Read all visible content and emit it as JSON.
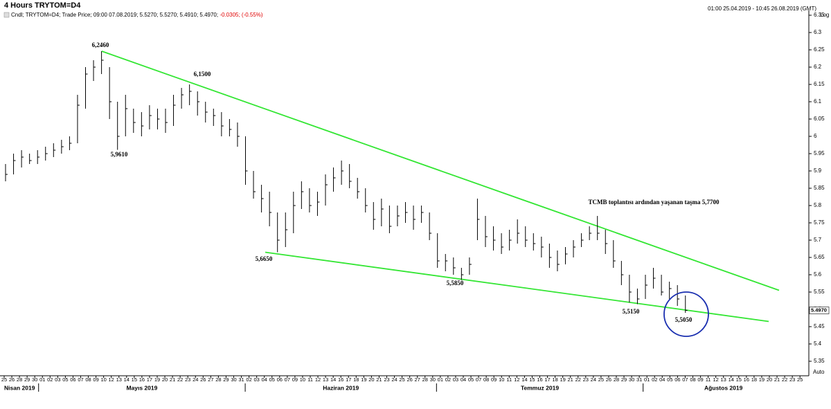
{
  "header": {
    "title": "4 Hours TRYTOM=D4",
    "info": "Cndl; TRYTOM=D4; Trade Price; 09:00 07.08.2019; 5.5270; 5.5270; 5.4910; 5.4970;",
    "change": "-0.0305; (-0.55%)",
    "change_color": "#e00000",
    "range": "01:00 25.04.2019 - 10:45 26.08.2019 (GMT)",
    "scale": "Log",
    "autoscale": "Auto"
  },
  "chart_data": {
    "type": "ohlc",
    "color": "#000000",
    "high": [
      5.92,
      5.95,
      5.96,
      5.95,
      5.96,
      5.97,
      5.98,
      5.99,
      6.0,
      6.12,
      6.2,
      6.22,
      6.246,
      6.2,
      6.1,
      6.12,
      6.08,
      6.07,
      6.09,
      6.08,
      6.08,
      6.12,
      6.14,
      6.15,
      6.13,
      6.1,
      6.08,
      6.07,
      6.05,
      6.04,
      6.0,
      5.9,
      5.86,
      5.84,
      5.78,
      5.78,
      5.84,
      5.87,
      5.85,
      5.84,
      5.89,
      5.91,
      5.93,
      5.92,
      5.88,
      5.85,
      5.81,
      5.82,
      5.8,
      5.8,
      5.81,
      5.8,
      5.8,
      5.78,
      5.72,
      5.66,
      5.65,
      5.62,
      5.65,
      5.82,
      5.77,
      5.74,
      5.72,
      5.73,
      5.76,
      5.74,
      5.72,
      5.71,
      5.69,
      5.67,
      5.68,
      5.7,
      5.72,
      5.74,
      5.77,
      5.73,
      5.7,
      5.64,
      5.6,
      5.56,
      5.6,
      5.62,
      5.6,
      5.58,
      5.57,
      5.54
    ],
    "low": [
      5.87,
      5.89,
      5.91,
      5.92,
      5.92,
      5.93,
      5.94,
      5.95,
      5.96,
      5.98,
      6.08,
      6.16,
      6.18,
      6.05,
      5.961,
      6.0,
      6.01,
      6.0,
      6.02,
      6.02,
      6.01,
      6.03,
      6.08,
      6.09,
      6.06,
      6.04,
      6.03,
      6.0,
      6.0,
      5.97,
      5.86,
      5.82,
      5.78,
      5.74,
      5.665,
      5.68,
      5.72,
      5.79,
      5.78,
      5.77,
      5.8,
      5.84,
      5.86,
      5.85,
      5.82,
      5.78,
      5.73,
      5.74,
      5.72,
      5.74,
      5.75,
      5.73,
      5.75,
      5.7,
      5.62,
      5.61,
      5.6,
      5.585,
      5.6,
      5.7,
      5.68,
      5.67,
      5.66,
      5.67,
      5.69,
      5.68,
      5.67,
      5.65,
      5.62,
      5.61,
      5.63,
      5.65,
      5.68,
      5.7,
      5.7,
      5.66,
      5.62,
      5.57,
      5.52,
      5.515,
      5.53,
      5.56,
      5.54,
      5.53,
      5.51,
      5.49
    ],
    "close": [
      5.89,
      5.93,
      5.94,
      5.93,
      5.94,
      5.95,
      5.96,
      5.97,
      5.98,
      6.09,
      6.18,
      6.2,
      6.22,
      6.1,
      6.0,
      6.08,
      6.04,
      6.03,
      6.06,
      6.05,
      6.04,
      6.09,
      6.12,
      6.13,
      6.1,
      6.07,
      6.06,
      6.03,
      6.02,
      6.0,
      5.9,
      5.84,
      5.82,
      5.78,
      5.7,
      5.73,
      5.8,
      5.84,
      5.8,
      5.81,
      5.86,
      5.88,
      5.9,
      5.87,
      5.84,
      5.8,
      5.76,
      5.79,
      5.74,
      5.77,
      5.78,
      5.76,
      5.78,
      5.72,
      5.64,
      5.64,
      5.62,
      5.6,
      5.63,
      5.76,
      5.71,
      5.7,
      5.68,
      5.7,
      5.72,
      5.7,
      5.69,
      5.68,
      5.65,
      5.63,
      5.66,
      5.68,
      5.7,
      5.72,
      5.72,
      5.69,
      5.64,
      5.6,
      5.55,
      5.53,
      5.57,
      5.59,
      5.55,
      5.56,
      5.53,
      5.497
    ],
    "ylim": [
      5.314,
      6.364
    ],
    "yticks": [
      5.35,
      5.4,
      5.45,
      5.5,
      5.55,
      5.6,
      5.65,
      5.7,
      5.75,
      5.8,
      5.85,
      5.9,
      5.95,
      6,
      6.05,
      6.1,
      6.15,
      6.2,
      6.25,
      6.3,
      6.35
    ],
    "last_price": {
      "value": 5.497,
      "label": "5.4970"
    },
    "trendlines": [
      {
        "color": "#33e633",
        "y": [
          6.246,
          5.555
        ]
      },
      {
        "color": "#33e633",
        "y": [
          5.665,
          5.465
        ]
      }
    ],
    "circle_color": "#1a2fb0",
    "annotations": [
      {
        "text": "6,2460",
        "color": "#e00000"
      },
      {
        "text": "6,1500",
        "color": "#e00000"
      },
      {
        "text": "5,9610",
        "color": "#e00000"
      },
      {
        "text": "5,6650",
        "color": "#e00000"
      },
      {
        "text": "5,5850",
        "color": "#e00000"
      },
      {
        "text": "5,5150",
        "color": "#e00000"
      },
      {
        "text": "5,5050",
        "color": "#e00000"
      },
      {
        "text": "TCMB toplantısı ardından yaşanan taşma 5,7700",
        "color": "#e00000"
      }
    ],
    "x_axis": {
      "months": [
        {
          "label": "Nisan 2019",
          "days": [
            "25",
            "26",
            "28",
            "29",
            "30"
          ]
        },
        {
          "label": "Mayıs 2019",
          "days": [
            "01",
            "02",
            "03",
            "05",
            "06",
            "07",
            "08",
            "09",
            "10",
            "12",
            "13",
            "14",
            "15",
            "16",
            "17",
            "19",
            "20",
            "21",
            "22",
            "23",
            "24",
            "26",
            "27",
            "28",
            "29",
            "30",
            "31"
          ]
        },
        {
          "label": "Haziran 2019",
          "days": [
            "02",
            "03",
            "04",
            "05",
            "06",
            "07",
            "09",
            "10",
            "11",
            "12",
            "13",
            "14",
            "16",
            "17",
            "18",
            "19",
            "20",
            "21",
            "23",
            "24",
            "25",
            "26",
            "27",
            "28",
            "30"
          ]
        },
        {
          "label": "Temmuz 2019",
          "days": [
            "01",
            "02",
            "03",
            "04",
            "05",
            "07",
            "08",
            "09",
            "10",
            "11",
            "12",
            "14",
            "15",
            "16",
            "17",
            "18",
            "19",
            "21",
            "22",
            "23",
            "24",
            "25",
            "26",
            "28",
            "29",
            "30",
            "31"
          ]
        },
        {
          "label": "Ağustos 2019",
          "days": [
            "01",
            "02",
            "04",
            "05",
            "06",
            "07",
            "08",
            "09",
            "11",
            "12",
            "13",
            "14",
            "15",
            "16",
            "18",
            "19",
            "20",
            "21",
            "22",
            "23",
            "25"
          ]
        }
      ]
    }
  }
}
